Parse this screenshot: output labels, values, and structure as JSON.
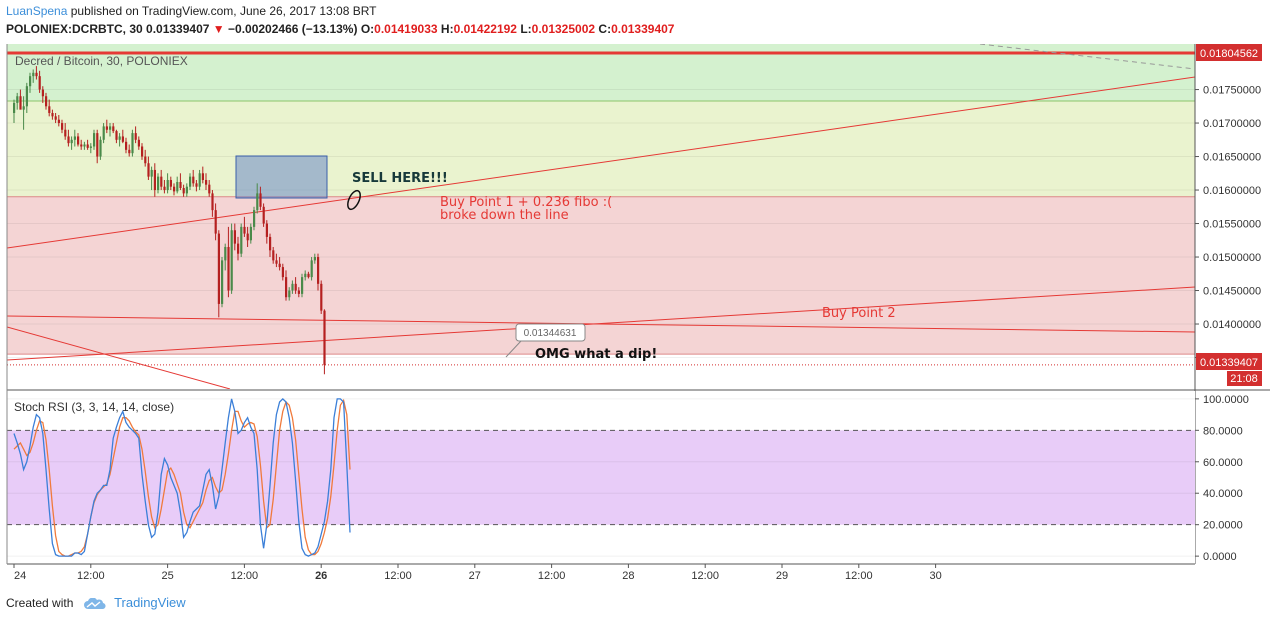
{
  "header": {
    "author": "LuanSpena",
    "published": "published on TradingView.com, June 26, 2017 13:08 BRT"
  },
  "ohlc": {
    "symbol": "POLONIEX:DCRBTC, 30",
    "last": "0.01339407",
    "change": "−0.00202466 (−13.13%)",
    "o_label": "O:",
    "o": "0.01419033",
    "h_label": "H:",
    "h": "0.01422192",
    "l_label": "L:",
    "l": "0.01325002",
    "c_label": "C:",
    "c": "0.01339407"
  },
  "footer": {
    "created_with": "Created with",
    "brand": "TradingView"
  },
  "colors": {
    "green_zone": "#d4f1cf",
    "yellow_zone": "#eaf3cf",
    "red_zone": "#f4d4d4",
    "rsi_band": "#e8ccf8",
    "up": "#4a8a4a",
    "down": "#b52020",
    "k_line": "#3b7fd8",
    "d_line": "#f07a3c",
    "trend": "#e53935",
    "price_badge": "#d32f2f"
  },
  "chart_data": [
    {
      "type": "candlestick",
      "title": "Decred / Bitcoin, 30, POLONIEX",
      "y_ticks": [
        "0.01750000",
        "0.01700000",
        "0.01650000",
        "0.01600000",
        "0.01550000",
        "0.01500000",
        "0.01450000",
        "0.01400000",
        "0.01350000"
      ],
      "y_tick_values": [
        0.0175,
        0.017,
        0.0165,
        0.016,
        0.0155,
        0.015,
        0.0145,
        0.014,
        0.0135
      ],
      "ylim": [
        0.01303,
        0.01818
      ],
      "x_ticks": [
        "24",
        "12:00",
        "25",
        "12:00",
        "26",
        "12:00",
        "27",
        "12:00",
        "28",
        "12:00",
        "29",
        "12:00",
        "30"
      ],
      "xlim": [
        0,
        297
      ],
      "price_label": "0.01339407",
      "time_label": "21:08",
      "top_line_label": "0.01804562",
      "top_line_value": 0.01804562,
      "zones": [
        {
          "name": "green",
          "from": 0.01733,
          "to": 0.01818
        },
        {
          "name": "yellow",
          "from": 0.0159,
          "to": 0.01733
        },
        {
          "name": "red",
          "from": 0.01355,
          "to": 0.0159
        }
      ],
      "candles": [
        [
          0.01715,
          0.01735,
          0.017,
          0.0173
        ],
        [
          0.0173,
          0.01745,
          0.0172,
          0.0174
        ],
        [
          0.0174,
          0.0175,
          0.01725,
          0.0172
        ],
        [
          0.0172,
          0.0174,
          0.0169,
          0.01725
        ],
        [
          0.01725,
          0.0176,
          0.01715,
          0.01755
        ],
        [
          0.01755,
          0.01775,
          0.01745,
          0.0177
        ],
        [
          0.0177,
          0.0178,
          0.0176,
          0.01775
        ],
        [
          0.01775,
          0.01785,
          0.01765,
          0.0177
        ],
        [
          0.0177,
          0.01778,
          0.01745,
          0.0175
        ],
        [
          0.0175,
          0.01755,
          0.0173,
          0.0174
        ],
        [
          0.0174,
          0.01745,
          0.0172,
          0.01725
        ],
        [
          0.01725,
          0.01735,
          0.0171,
          0.01715
        ],
        [
          0.01715,
          0.0172,
          0.01705,
          0.0171
        ],
        [
          0.0171,
          0.01715,
          0.017,
          0.01705
        ],
        [
          0.01705,
          0.01712,
          0.01695,
          0.017
        ],
        [
          0.017,
          0.01705,
          0.01685,
          0.0169
        ],
        [
          0.0169,
          0.017,
          0.01675,
          0.0168
        ],
        [
          0.0168,
          0.0169,
          0.01665,
          0.0167
        ],
        [
          0.0167,
          0.0168,
          0.0166,
          0.01675
        ],
        [
          0.01675,
          0.0169,
          0.01665,
          0.0168
        ],
        [
          0.0168,
          0.01685,
          0.01665,
          0.01668
        ],
        [
          0.01668,
          0.01675,
          0.0166,
          0.01665
        ],
        [
          0.01665,
          0.01672,
          0.0166,
          0.01668
        ],
        [
          0.01668,
          0.01675,
          0.0166,
          0.01663
        ],
        [
          0.01663,
          0.0167,
          0.01655,
          0.01665
        ],
        [
          0.01665,
          0.0169,
          0.0166,
          0.01685
        ],
        [
          0.01685,
          0.0169,
          0.0164,
          0.0165
        ],
        [
          0.0165,
          0.0168,
          0.01645,
          0.01675
        ],
        [
          0.01675,
          0.017,
          0.0167,
          0.01695
        ],
        [
          0.01695,
          0.01705,
          0.01685,
          0.0169
        ],
        [
          0.0169,
          0.017,
          0.0168,
          0.01695
        ],
        [
          0.01695,
          0.017,
          0.01685,
          0.01688
        ],
        [
          0.01688,
          0.0169,
          0.0167,
          0.01675
        ],
        [
          0.01675,
          0.01685,
          0.01665,
          0.0168
        ],
        [
          0.0168,
          0.0169,
          0.0167,
          0.01672
        ],
        [
          0.01672,
          0.01678,
          0.01655,
          0.0166
        ],
        [
          0.0166,
          0.01668,
          0.0165,
          0.01655
        ],
        [
          0.01655,
          0.0169,
          0.0165,
          0.01685
        ],
        [
          0.01685,
          0.01695,
          0.0167,
          0.01675
        ],
        [
          0.01675,
          0.0168,
          0.0166,
          0.01665
        ],
        [
          0.01665,
          0.0167,
          0.01645,
          0.0165
        ],
        [
          0.0165,
          0.0166,
          0.01635,
          0.0164
        ],
        [
          0.0164,
          0.0165,
          0.01615,
          0.0162
        ],
        [
          0.0162,
          0.01635,
          0.016,
          0.0163
        ],
        [
          0.0163,
          0.0164,
          0.0159,
          0.016
        ],
        [
          0.016,
          0.01625,
          0.01595,
          0.0162
        ],
        [
          0.0162,
          0.0163,
          0.016,
          0.01605
        ],
        [
          0.01605,
          0.01615,
          0.01595,
          0.016
        ],
        [
          0.016,
          0.01625,
          0.01595,
          0.01615
        ],
        [
          0.01615,
          0.0162,
          0.016,
          0.01605
        ],
        [
          0.01605,
          0.0161,
          0.01592,
          0.01598
        ],
        [
          0.01598,
          0.0162,
          0.01595,
          0.01612
        ],
        [
          0.01612,
          0.01625,
          0.016,
          0.01603
        ],
        [
          0.01603,
          0.01608,
          0.0159,
          0.01595
        ],
        [
          0.01595,
          0.0161,
          0.0159,
          0.01605
        ],
        [
          0.01605,
          0.01625,
          0.016,
          0.0162
        ],
        [
          0.0162,
          0.0163,
          0.01605,
          0.0161
        ],
        [
          0.0161,
          0.01615,
          0.01598,
          0.01605
        ],
        [
          0.01605,
          0.0163,
          0.016,
          0.01625
        ],
        [
          0.01625,
          0.01635,
          0.0161,
          0.01615
        ],
        [
          0.01615,
          0.01625,
          0.016,
          0.01608
        ],
        [
          0.01608,
          0.01615,
          0.0159,
          0.01595
        ],
        [
          0.01595,
          0.016,
          0.0156,
          0.0157
        ],
        [
          0.0157,
          0.0158,
          0.01525,
          0.01535
        ],
        [
          0.01535,
          0.0154,
          0.0141,
          0.0143
        ],
        [
          0.0143,
          0.015,
          0.01425,
          0.01495
        ],
        [
          0.01495,
          0.0152,
          0.0148,
          0.01515
        ],
        [
          0.01515,
          0.01545,
          0.0144,
          0.0145
        ],
        [
          0.0145,
          0.0155,
          0.01445,
          0.0154
        ],
        [
          0.0154,
          0.0155,
          0.0151,
          0.0152
        ],
        [
          0.0152,
          0.0153,
          0.01495,
          0.01505
        ],
        [
          0.01505,
          0.0155,
          0.015,
          0.01545
        ],
        [
          0.01545,
          0.0156,
          0.0153,
          0.01535
        ],
        [
          0.01535,
          0.01545,
          0.01515,
          0.01525
        ],
        [
          0.01525,
          0.0155,
          0.0152,
          0.01545
        ],
        [
          0.01545,
          0.01575,
          0.0154,
          0.0157
        ],
        [
          0.0157,
          0.0161,
          0.01565,
          0.01595
        ],
        [
          0.01595,
          0.01605,
          0.0157,
          0.01575
        ],
        [
          0.01575,
          0.0158,
          0.01545,
          0.0155
        ],
        [
          0.0155,
          0.01555,
          0.0152,
          0.0153
        ],
        [
          0.0153,
          0.01535,
          0.015,
          0.0151
        ],
        [
          0.0151,
          0.01515,
          0.0149,
          0.01495
        ],
        [
          0.01495,
          0.01505,
          0.01485,
          0.0149
        ],
        [
          0.0149,
          0.015,
          0.0148,
          0.01485
        ],
        [
          0.01485,
          0.0149,
          0.01465,
          0.0147
        ],
        [
          0.0147,
          0.0148,
          0.01435,
          0.0144
        ],
        [
          0.0144,
          0.01455,
          0.01435,
          0.0145
        ],
        [
          0.0145,
          0.01465,
          0.01445,
          0.0146
        ],
        [
          0.0146,
          0.0147,
          0.01445,
          0.0145
        ],
        [
          0.0145,
          0.01455,
          0.0144,
          0.01445
        ],
        [
          0.01445,
          0.01475,
          0.0144,
          0.0147
        ],
        [
          0.0147,
          0.0148,
          0.01465,
          0.01475
        ],
        [
          0.01475,
          0.01478,
          0.01468,
          0.0147
        ],
        [
          0.0147,
          0.015,
          0.01465,
          0.01495
        ],
        [
          0.01495,
          0.01505,
          0.0149,
          0.015
        ],
        [
          0.015,
          0.01505,
          0.0145,
          0.0146
        ],
        [
          0.0146,
          0.01465,
          0.01415,
          0.0142
        ],
        [
          0.0142,
          0.01422,
          0.01325,
          0.01339
        ]
      ],
      "annotations": [
        {
          "text": "SELL HERE!!!",
          "color": "#17393a",
          "bold": true
        },
        {
          "text": "Buy Point 1 + 0.236 fibo :(",
          "color": "#e53935"
        },
        {
          "text": "broke down the line",
          "color": "#e53935"
        },
        {
          "text": "Buy Point 2",
          "color": "#e53935"
        },
        {
          "text": "OMG what a dip!",
          "color": "#111111",
          "bold": true
        },
        {
          "text": "0.01344631",
          "color": "#666666"
        }
      ]
    },
    {
      "type": "line",
      "title": "Stoch RSI (3, 3, 14, 14, close)",
      "ylim": [
        -5,
        105
      ],
      "y_ticks": [
        "100.0000",
        "80.0000",
        "60.0000",
        "40.0000",
        "20.0000",
        "0.0000"
      ],
      "y_tick_values": [
        100,
        80,
        60,
        40,
        20,
        0
      ],
      "bands": {
        "upper": 80,
        "lower": 20
      },
      "series": [
        {
          "name": "K",
          "values": [
            78,
            72,
            65,
            55,
            60,
            70,
            82,
            90,
            88,
            78,
            55,
            30,
            8,
            1,
            0,
            0,
            0,
            0,
            0,
            2,
            2,
            1,
            3,
            14,
            25,
            35,
            40,
            42,
            45,
            45,
            55,
            75,
            82,
            88,
            92,
            85,
            82,
            80,
            78,
            75,
            52,
            35,
            20,
            12,
            14,
            28,
            52,
            62,
            58,
            50,
            45,
            40,
            28,
            12,
            15,
            22,
            28,
            30,
            32,
            42,
            52,
            55,
            45,
            30,
            38,
            55,
            72,
            88,
            100,
            92,
            78,
            80,
            85,
            88,
            82,
            78,
            55,
            20,
            5,
            20,
            45,
            72,
            90,
            98,
            100,
            98,
            88,
            72,
            48,
            22,
            5,
            1,
            0,
            1,
            2,
            6,
            14,
            22,
            35,
            55,
            88,
            100,
            100,
            98,
            58,
            15
          ]
        },
        {
          "name": "D",
          "values": [
            68,
            70,
            72,
            68,
            64,
            66,
            72,
            80,
            86,
            85,
            74,
            55,
            32,
            13,
            3,
            1,
            0,
            0,
            1,
            2,
            2,
            3,
            6,
            14,
            25,
            34,
            39,
            42,
            44,
            46,
            52,
            62,
            72,
            82,
            88,
            88,
            86,
            82,
            79,
            77,
            68,
            54,
            38,
            25,
            18,
            20,
            30,
            42,
            54,
            56,
            52,
            46,
            40,
            28,
            20,
            18,
            22,
            26,
            30,
            34,
            42,
            48,
            50,
            44,
            40,
            42,
            52,
            65,
            80,
            92,
            92,
            86,
            82,
            84,
            85,
            84,
            76,
            58,
            35,
            18,
            20,
            36,
            58,
            80,
            92,
            98,
            96,
            88,
            74,
            52,
            30,
            12,
            4,
            1,
            1,
            3,
            8,
            15,
            24,
            38,
            58,
            80,
            96,
            99,
            90,
            55
          ]
        }
      ]
    }
  ]
}
